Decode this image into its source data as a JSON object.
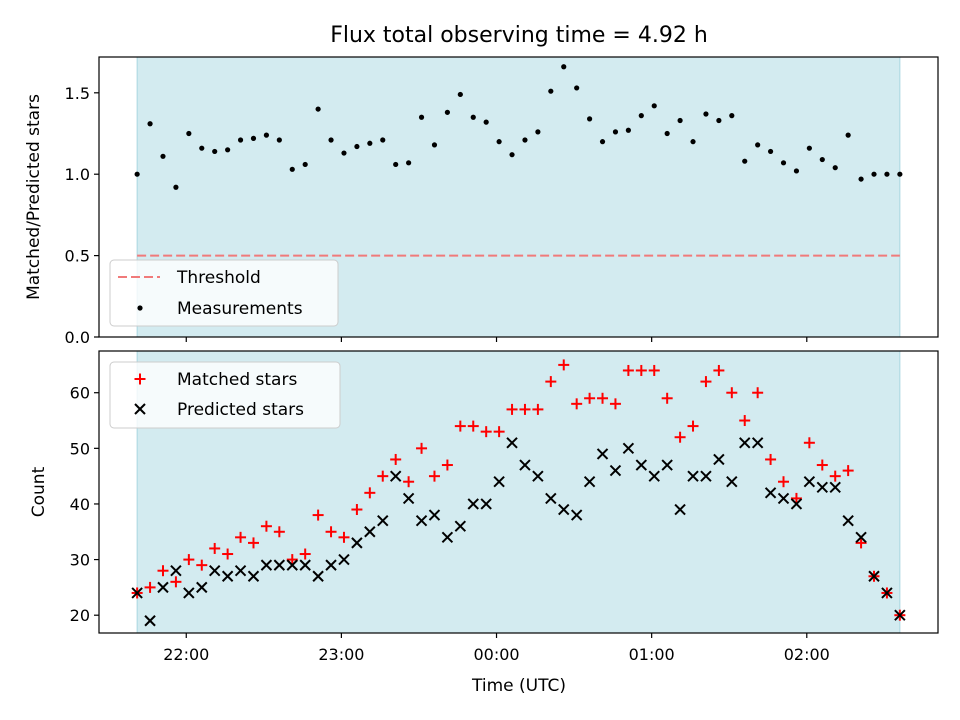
{
  "figure": {
    "title": "Flux total observing time = 4.92 h",
    "xlabel": "Time (UTC)"
  },
  "colors": {
    "shade": "#d3ebf0",
    "shade_edge": "#a9d7e0",
    "threshold": "#f07a7a",
    "matched": "#ff0000",
    "predicted": "#000000",
    "measurement": "#000000"
  },
  "chart_data": [
    {
      "type": "scatter",
      "panel": "top",
      "ylabel": "Matched/Predicted stars",
      "ylim": [
        0,
        1.72
      ],
      "yticks": [
        0.0,
        0.5,
        1.0,
        1.5
      ],
      "ytick_labels": [
        "0.0",
        "0.5",
        "1.0",
        "1.5"
      ],
      "grid": false,
      "legend_position": "lower-left",
      "shaded_span": [
        "21:41",
        "02:36"
      ],
      "threshold": {
        "name": "Threshold",
        "value": 0.5,
        "style": "dashed"
      },
      "series": [
        {
          "name": "Measurements",
          "marker": "dot",
          "x": [
            "21:41",
            "21:46",
            "21:51",
            "21:56",
            "22:01",
            "22:06",
            "22:11",
            "22:16",
            "22:21",
            "22:26",
            "22:31",
            "22:36",
            "22:41",
            "22:46",
            "22:51",
            "22:56",
            "23:01",
            "23:06",
            "23:11",
            "23:16",
            "23:21",
            "23:26",
            "23:31",
            "23:36",
            "23:41",
            "23:46",
            "23:51",
            "23:56",
            "00:01",
            "00:06",
            "00:11",
            "00:16",
            "00:21",
            "00:26",
            "00:31",
            "00:36",
            "00:41",
            "00:46",
            "00:51",
            "00:56",
            "01:01",
            "01:06",
            "01:11",
            "01:16",
            "01:21",
            "01:26",
            "01:31",
            "01:36",
            "01:41",
            "01:46",
            "01:51",
            "01:56",
            "02:01",
            "02:06",
            "02:11",
            "02:16",
            "02:21",
            "02:26",
            "02:31",
            "02:36"
          ],
          "values": [
            1.0,
            1.31,
            1.11,
            0.92,
            1.25,
            1.16,
            1.14,
            1.15,
            1.21,
            1.22,
            1.24,
            1.21,
            1.03,
            1.06,
            1.4,
            1.21,
            1.13,
            1.17,
            1.19,
            1.21,
            1.06,
            1.07,
            1.35,
            1.18,
            1.38,
            1.49,
            1.35,
            1.32,
            1.2,
            1.12,
            1.21,
            1.26,
            1.51,
            1.66,
            1.53,
            1.34,
            1.2,
            1.26,
            1.27,
            1.36,
            1.42,
            1.25,
            1.33,
            1.2,
            1.37,
            1.33,
            1.36,
            1.08,
            1.18,
            1.14,
            1.07,
            1.02,
            1.16,
            1.09,
            1.04,
            1.24,
            0.97,
            1.0,
            1.0,
            1.0
          ]
        }
      ]
    },
    {
      "type": "scatter",
      "panel": "bottom",
      "ylabel": "Count",
      "xlabel": "Time (UTC)",
      "x_tick_labels": [
        "22:00",
        "23:00",
        "00:00",
        "01:00",
        "02:00"
      ],
      "ylim": [
        16.8,
        67.5
      ],
      "yticks": [
        20,
        30,
        40,
        50,
        60
      ],
      "grid": false,
      "legend_position": "upper-left",
      "shaded_span": [
        "21:41",
        "02:36"
      ],
      "x": [
        "21:41",
        "21:46",
        "21:51",
        "21:56",
        "22:01",
        "22:06",
        "22:11",
        "22:16",
        "22:21",
        "22:26",
        "22:31",
        "22:36",
        "22:41",
        "22:46",
        "22:51",
        "22:56",
        "23:01",
        "23:06",
        "23:11",
        "23:16",
        "23:21",
        "23:26",
        "23:31",
        "23:36",
        "23:41",
        "23:46",
        "23:51",
        "23:56",
        "00:01",
        "00:06",
        "00:11",
        "00:16",
        "00:21",
        "00:26",
        "00:31",
        "00:36",
        "00:41",
        "00:46",
        "00:51",
        "00:56",
        "01:01",
        "01:06",
        "01:11",
        "01:16",
        "01:21",
        "01:26",
        "01:31",
        "01:36",
        "01:41",
        "01:46",
        "01:51",
        "01:56",
        "02:01",
        "02:06",
        "02:11",
        "02:16",
        "02:21",
        "02:26",
        "02:31",
        "02:36"
      ],
      "series": [
        {
          "name": "Matched stars",
          "marker": "plus",
          "values": [
            24,
            25,
            28,
            26,
            30,
            29,
            32,
            31,
            34,
            33,
            36,
            35,
            30,
            31,
            38,
            35,
            34,
            39,
            42,
            45,
            48,
            44,
            50,
            45,
            47,
            54,
            54,
            53,
            53,
            57,
            57,
            57,
            62,
            65,
            58,
            59,
            59,
            58,
            64,
            64,
            64,
            59,
            52,
            54,
            62,
            64,
            60,
            55,
            60,
            48,
            44,
            41,
            51,
            47,
            45,
            46,
            33,
            27,
            24,
            20
          ]
        },
        {
          "name": "Predicted stars",
          "marker": "x",
          "values": [
            24,
            19,
            25,
            28,
            24,
            25,
            28,
            27,
            28,
            27,
            29,
            29,
            29,
            29,
            27,
            29,
            30,
            33,
            35,
            37,
            45,
            41,
            37,
            38,
            34,
            36,
            40,
            40,
            44,
            51,
            47,
            45,
            41,
            39,
            38,
            44,
            49,
            46,
            50,
            47,
            45,
            47,
            39,
            45,
            45,
            48,
            44,
            51,
            51,
            42,
            41,
            40,
            44,
            43,
            43,
            37,
            34,
            27,
            24,
            20
          ]
        }
      ]
    }
  ]
}
